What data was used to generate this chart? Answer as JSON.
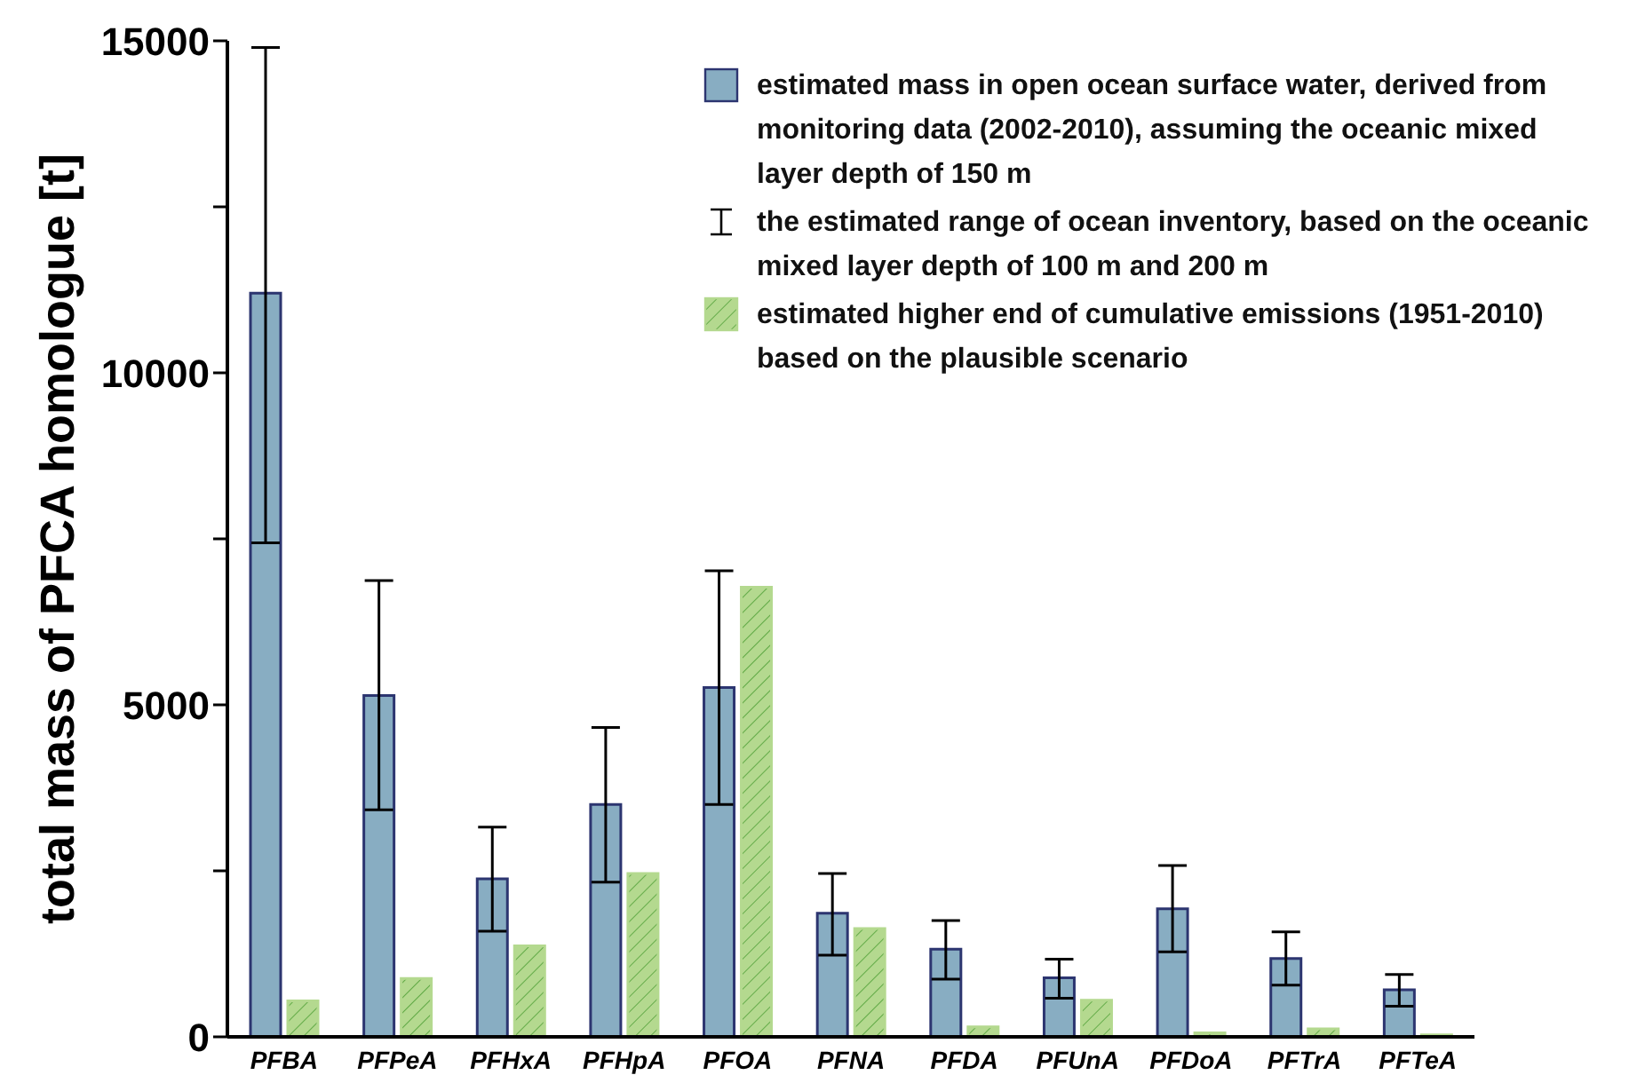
{
  "chart_data": {
    "type": "bar",
    "ylabel": "total mass of PFCA homologue [t]",
    "categories": [
      "PFBA",
      "PFPeA",
      "PFHxA",
      "PFHpA",
      "PFOA",
      "PFNA",
      "PFDA",
      "PFUnA",
      "PFDoA",
      "PFTrA",
      "PFTeA"
    ],
    "series": [
      {
        "name": "estimated mass in open ocean surface water, derived from monitoring data (2002-2010), assuming the oceanic mixed layer depth of 150 m",
        "color": "#88adc2",
        "values": [
          11200,
          5140,
          2380,
          3500,
          5260,
          1860,
          1320,
          890,
          1930,
          1180,
          710
        ],
        "errors": [
          [
            7440,
            14900
          ],
          [
            3420,
            6870
          ],
          [
            1590,
            3160
          ],
          [
            2330,
            4660
          ],
          [
            3500,
            7020
          ],
          [
            1230,
            2460
          ],
          [
            870,
            1750
          ],
          [
            580,
            1170
          ],
          [
            1280,
            2580
          ],
          [
            780,
            1580
          ],
          [
            460,
            940
          ]
        ]
      },
      {
        "name": "estimated higher end of cumulative emissions (1951-2010) based on the plausible scenario",
        "color": "#b4d98f",
        "values": [
          540,
          880,
          1370,
          2460,
          6770,
          1630,
          150,
          550,
          60,
          120,
          30
        ]
      }
    ],
    "annotations": [
      "the estimated range of ocean inventory, based on the oceanic mixed layer depth of 100 m and 200 m"
    ],
    "ylim": [
      0,
      15000
    ],
    "yticks": [
      0,
      {
        "value": 2500,
        "label": null
      },
      5000,
      {
        "value": 7500,
        "label": null
      },
      10000,
      {
        "value": 12500,
        "label": null
      },
      15000
    ],
    "legend": "top right"
  }
}
